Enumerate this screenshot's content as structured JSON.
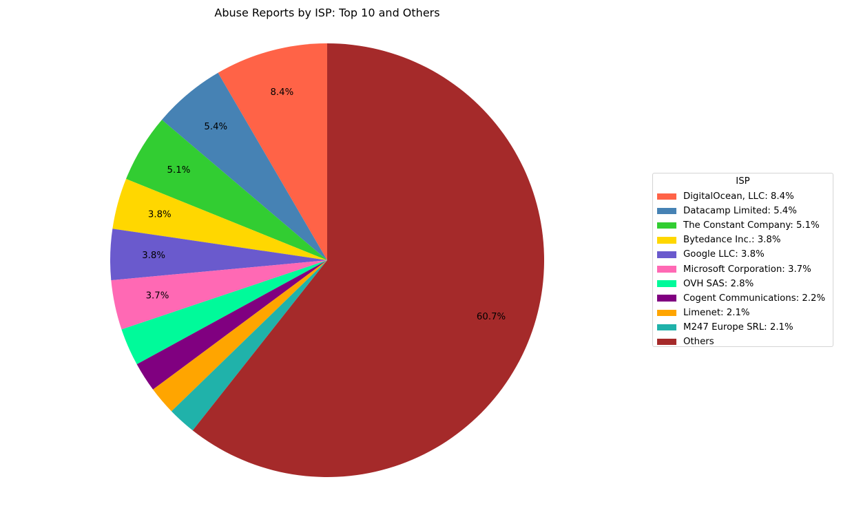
{
  "chart_data": {
    "type": "pie",
    "title": "Abuse Reports by ISP: Top 10 and Others",
    "slices": [
      {
        "label": "DigitalOcean, LLC",
        "value": 8.4,
        "pct_label": "8.4%",
        "color": "#FF6347"
      },
      {
        "label": "Datacamp Limited",
        "value": 5.4,
        "pct_label": "5.4%",
        "color": "#4682B4"
      },
      {
        "label": "The Constant Company",
        "value": 5.1,
        "pct_label": "5.1%",
        "color": "#32CD32"
      },
      {
        "label": "Bytedance Inc.",
        "value": 3.8,
        "pct_label": "3.8%",
        "color": "#FFD700"
      },
      {
        "label": "Google LLC",
        "value": 3.8,
        "pct_label": "3.8%",
        "color": "#6A5ACD"
      },
      {
        "label": "Microsoft Corporation",
        "value": 3.7,
        "pct_label": "3.7%",
        "color": "#FF69B4"
      },
      {
        "label": "OVH SAS",
        "value": 2.8,
        "pct_label": "",
        "color": "#00FA9A"
      },
      {
        "label": "Cogent Communications",
        "value": 2.2,
        "pct_label": "",
        "color": "#800080"
      },
      {
        "label": "Limenet",
        "value": 2.1,
        "pct_label": "",
        "color": "#FFA500"
      },
      {
        "label": "M247 Europe SRL",
        "value": 2.1,
        "pct_label": "",
        "color": "#20B2AA"
      },
      {
        "label": "Others",
        "value": 60.7,
        "pct_label": "60.7%",
        "color": "#A52A2A"
      }
    ],
    "start_angle_deg": 90,
    "direction": "counterclockwise",
    "legend": {
      "title": "ISP",
      "placement": "right",
      "entries": [
        "DigitalOcean, LLC: 8.4%",
        "Datacamp Limited: 5.4%",
        "The Constant Company: 5.1%",
        "Bytedance Inc.: 3.8%",
        "Google LLC: 3.8%",
        "Microsoft Corporation: 3.7%",
        "OVH SAS: 2.8%",
        "Cogent Communications: 2.2%",
        "Limenet: 2.1%",
        "M247 Europe SRL: 2.1%",
        "Others"
      ]
    }
  }
}
